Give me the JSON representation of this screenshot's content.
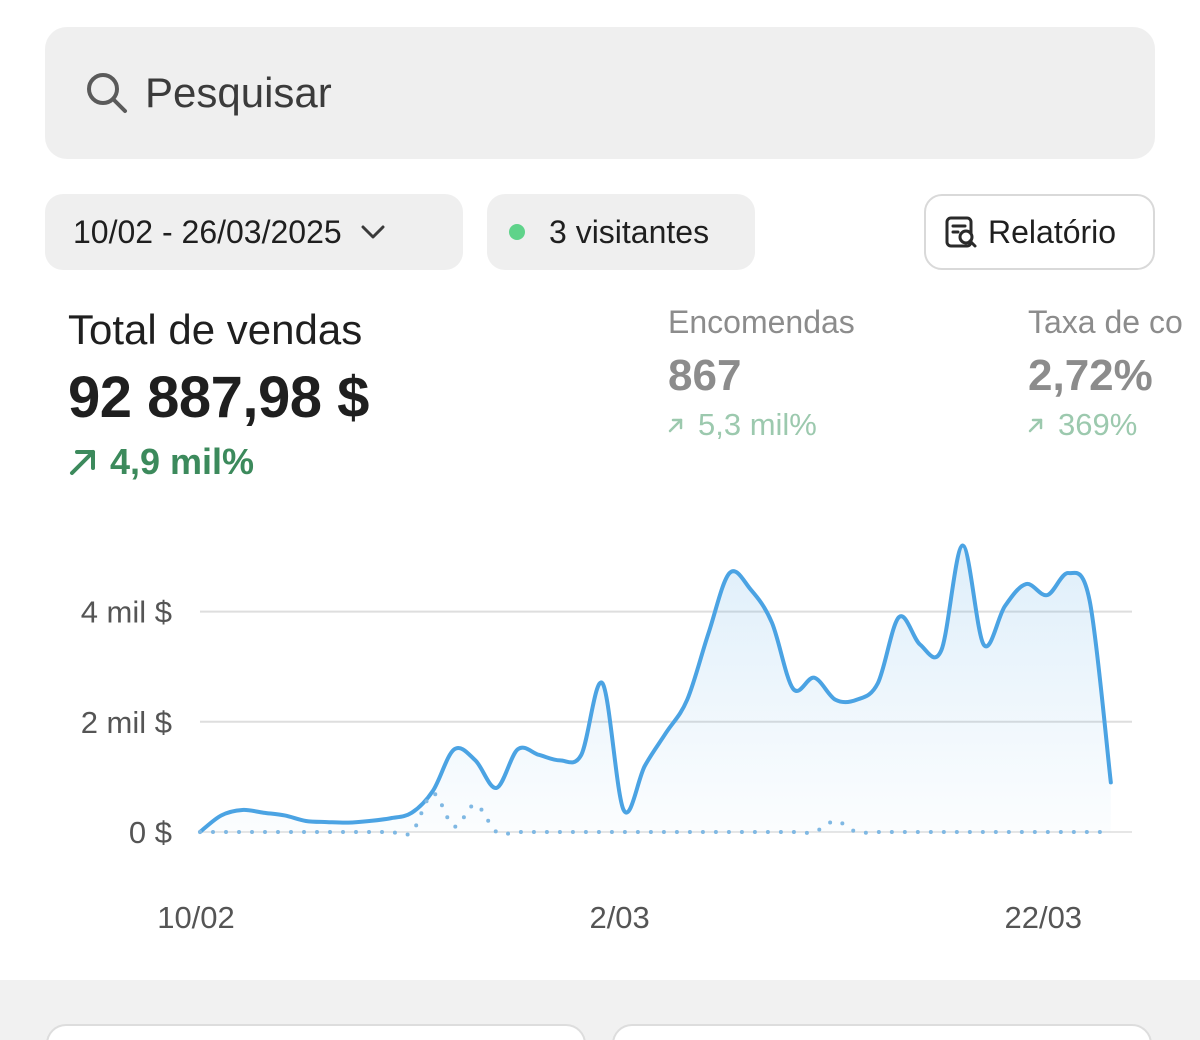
{
  "search": {
    "placeholder": "Pesquisar",
    "icon": "search-icon"
  },
  "filters": {
    "date_range": "10/02 - 26/03/2025",
    "visitors": "3 visitantes",
    "visitors_dot_color": "#5fd38a",
    "report_label": "Relatório"
  },
  "metrics": {
    "total_sales": {
      "label": "Total de vendas",
      "value": "92 887,98 $",
      "change": "4,9 mil%"
    },
    "orders": {
      "label": "Encomendas",
      "value": "867",
      "change": "5,3 mil%"
    },
    "conversion": {
      "label": "Taxa de co",
      "value": "2,72%",
      "change": "369%"
    }
  },
  "colors": {
    "positive_green": "#3c8a5c",
    "series_blue": "#4ba3e3"
  },
  "chart_data": {
    "type": "line",
    "ytick_labels": [
      "4 mil $",
      "2 mil $",
      "0 $"
    ],
    "yticks": [
      4000,
      2000,
      0
    ],
    "ylim": [
      0,
      5300
    ],
    "xtick_labels": [
      "10/02",
      "2/03",
      "22/03"
    ],
    "xtick_positions": [
      0,
      20,
      40
    ],
    "xlim": [
      0,
      44
    ],
    "grid": true,
    "series": [
      {
        "values": [
          0,
          300,
          400,
          350,
          300,
          200,
          180,
          170,
          200,
          250,
          350,
          750,
          1500,
          1300,
          800,
          1500,
          1400,
          1300,
          1400,
          2700,
          400,
          1200,
          1800,
          2400,
          3600,
          4700,
          4400,
          3800,
          2600,
          2800,
          2400,
          2400,
          2700,
          3900,
          3400,
          3300,
          5200,
          3400,
          4100,
          4500,
          4300,
          4700,
          4200,
          900
        ]
      },
      {
        "dotted": true,
        "values": [
          0,
          0,
          0,
          0,
          0,
          0,
          0,
          0,
          0,
          0,
          0,
          700,
          100,
          500,
          0,
          0,
          0,
          0,
          0,
          0,
          0,
          0,
          0,
          0,
          0,
          0,
          0,
          0,
          0,
          0,
          200,
          0,
          0,
          0,
          0,
          0,
          0,
          0,
          0,
          0,
          0,
          0,
          0,
          0
        ]
      }
    ]
  }
}
